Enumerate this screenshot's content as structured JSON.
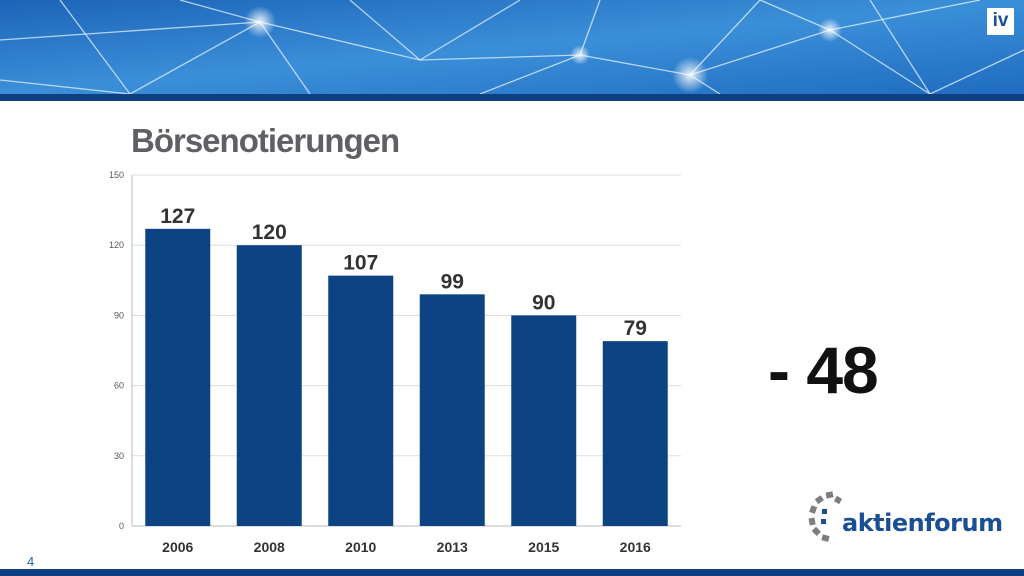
{
  "slide": {
    "title": "Börsenotierungen",
    "page_number": "4",
    "delta": "- 48"
  },
  "logos": {
    "iv": "iv",
    "aktienforum": "aktienforum"
  },
  "colors": {
    "bar": "#0d4283",
    "brand_blue": "#0d3f82",
    "title_gray": "#5e6064"
  },
  "chart_data": {
    "type": "bar",
    "title": "Börsenotierungen",
    "categories": [
      "2006",
      "2008",
      "2010",
      "2013",
      "2015",
      "2016"
    ],
    "values": [
      127,
      120,
      107,
      99,
      90,
      79
    ],
    "ylim": [
      0,
      150
    ],
    "yticks": [
      0,
      30,
      60,
      90,
      120,
      150
    ],
    "xlabel": "",
    "ylabel": "",
    "grid": true
  }
}
